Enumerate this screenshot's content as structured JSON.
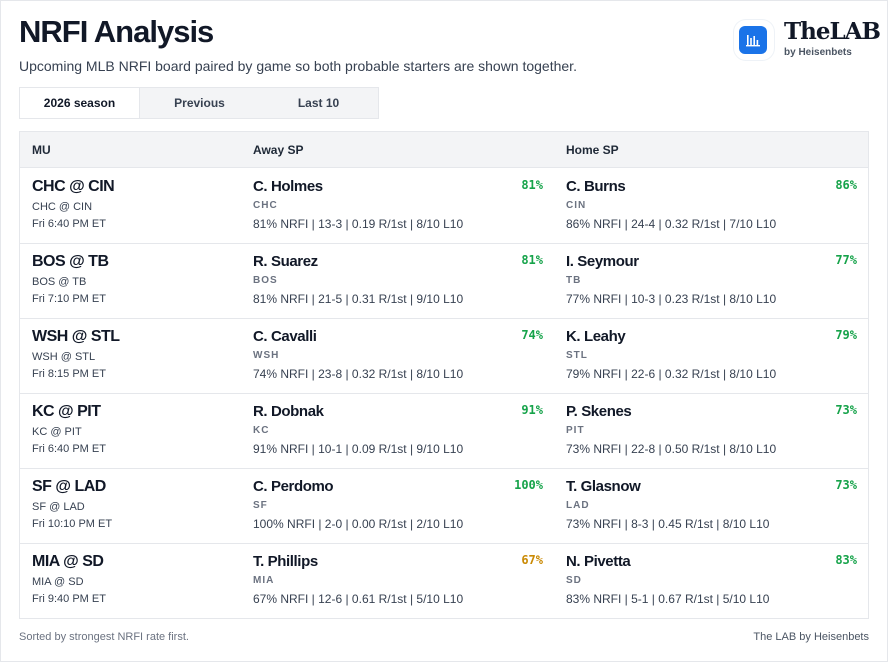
{
  "header": {
    "title": "NRFI Analysis",
    "subtitle": "Upcoming MLB NRFI board paired by game so both probable starters are shown together."
  },
  "brand": {
    "name": "TheLAB",
    "sub": "by Heisenbets",
    "logo_icon": "bar-chart-icon",
    "logo_color": "#1a73e8"
  },
  "tabs": [
    {
      "label": "2026 season",
      "active": true
    },
    {
      "label": "Previous",
      "active": false
    },
    {
      "label": "Last 10",
      "active": false
    }
  ],
  "table": {
    "headers": [
      "MU",
      "Away SP",
      "Home SP"
    ],
    "rows": [
      {
        "mu": "CHC @ CIN",
        "mu_sub": "CHC @ CIN",
        "time": "Fri 6:40 PM ET",
        "away": {
          "name": "C. Holmes",
          "team": "CHC",
          "pct": "81%",
          "stats": "81% NRFI | 13-3 | 0.19 R/1st | 8/10 L10"
        },
        "home": {
          "name": "C. Burns",
          "team": "CIN",
          "pct": "86%",
          "stats": "86% NRFI | 24-4 | 0.32 R/1st | 7/10 L10"
        }
      },
      {
        "mu": "BOS @ TB",
        "mu_sub": "BOS @ TB",
        "time": "Fri 7:10 PM ET",
        "away": {
          "name": "R. Suarez",
          "team": "BOS",
          "pct": "81%",
          "stats": "81% NRFI | 21-5 | 0.31 R/1st | 9/10 L10"
        },
        "home": {
          "name": "I. Seymour",
          "team": "TB",
          "pct": "77%",
          "stats": "77% NRFI | 10-3 | 0.23 R/1st | 8/10 L10"
        }
      },
      {
        "mu": "WSH @ STL",
        "mu_sub": "WSH @ STL",
        "time": "Fri 8:15 PM ET",
        "away": {
          "name": "C. Cavalli",
          "team": "WSH",
          "pct": "74%",
          "stats": "74% NRFI | 23-8 | 0.32 R/1st | 8/10 L10"
        },
        "home": {
          "name": "K. Leahy",
          "team": "STL",
          "pct": "79%",
          "stats": "79% NRFI | 22-6 | 0.32 R/1st | 8/10 L10"
        }
      },
      {
        "mu": "KC @ PIT",
        "mu_sub": "KC @ PIT",
        "time": "Fri 6:40 PM ET",
        "away": {
          "name": "R. Dobnak",
          "team": "KC",
          "pct": "91%",
          "stats": "91% NRFI | 10-1 | 0.09 R/1st | 9/10 L10"
        },
        "home": {
          "name": "P. Skenes",
          "team": "PIT",
          "pct": "73%",
          "stats": "73% NRFI | 22-8 | 0.50 R/1st | 8/10 L10"
        }
      },
      {
        "mu": "SF @ LAD",
        "mu_sub": "SF @ LAD",
        "time": "Fri 10:10 PM ET",
        "away": {
          "name": "C. Perdomo",
          "team": "SF",
          "pct": "100%",
          "stats": "100% NRFI | 2-0 | 0.00 R/1st | 2/10 L10"
        },
        "home": {
          "name": "T. Glasnow",
          "team": "LAD",
          "pct": "73%",
          "stats": "73% NRFI | 8-3 | 0.45 R/1st | 8/10 L10"
        }
      },
      {
        "mu": "MIA @ SD",
        "mu_sub": "MIA @ SD",
        "time": "Fri 9:40 PM ET",
        "away": {
          "name": "T. Phillips",
          "team": "MIA",
          "pct": "67%",
          "stats": "67% NRFI | 12-6 | 0.61 R/1st | 5/10 L10"
        },
        "home": {
          "name": "N. Pivetta",
          "team": "SD",
          "pct": "83%",
          "stats": "83% NRFI | 5-1 | 0.67 R/1st | 5/10 L10"
        }
      }
    ]
  },
  "colors": {
    "pct_high": "#16a34a",
    "pct_mid": "#ca8a04"
  },
  "footer": {
    "left": "Sorted by strongest NRFI rate first.",
    "right": "The LAB by Heisenbets"
  }
}
